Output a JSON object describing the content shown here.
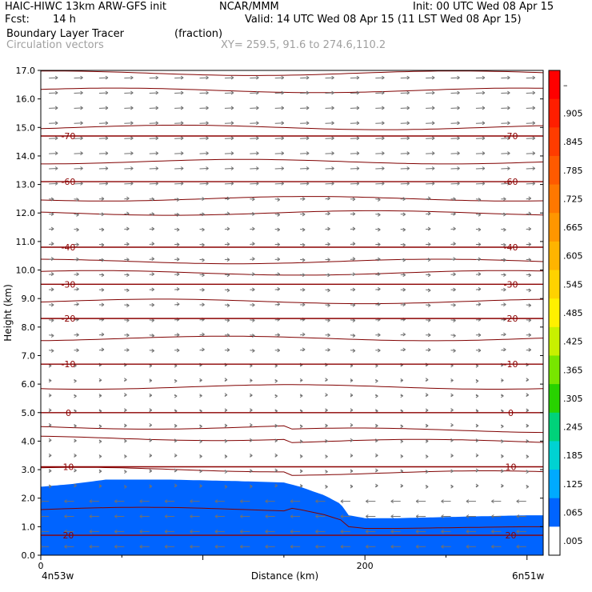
{
  "header": {
    "title_left": "HAIC-HIWC 13km ARW-GFS init",
    "org": "NCAR/MMM",
    "init": "Init: 00 UTC Wed 08 Apr 15",
    "fcst_label": "Fcst:",
    "fcst_value": "14 h",
    "valid": "Valid: 14 UTC Wed 08 Apr 15 (11 LST Wed 08 Apr 15)",
    "field_name": "Boundary Layer Tracer",
    "field_units": "(fraction)",
    "vector_label": "Circulation vectors",
    "xy_label": "XY= 259.5, 91.6 to 274.6,110.2"
  },
  "chart_data": {
    "type": "heatmap",
    "ylabel": "Height (km)",
    "xlabel": "Distance (km)",
    "ylim": [
      0,
      17
    ],
    "xlim": [
      0,
      310
    ],
    "yticks": [
      "0.0",
      "1.0",
      "2.0",
      "3.0",
      "4.0",
      "5.0",
      "6.0",
      "7.0",
      "8.0",
      "9.0",
      "10.0",
      "11.0",
      "12.0",
      "13.0",
      "14.0",
      "15.0",
      "16.0",
      "17.0"
    ],
    "xticks": [
      {
        "value": 0,
        "label": "0"
      },
      {
        "value": 200,
        "label": "200"
      }
    ],
    "endpoint_labels": {
      "left": "4n53w",
      "right": "6n51w"
    },
    "colorbar": {
      "labels": [
        "–",
        ".905",
        ".845",
        ".785",
        ".725",
        ".665",
        ".605",
        ".545",
        ".485",
        ".425",
        ".365",
        ".305",
        ".245",
        ".185",
        ".125",
        ".065",
        ".005"
      ],
      "colors": [
        "#ff0000",
        "#ff1e00",
        "#ff3c00",
        "#ff5a00",
        "#ff7800",
        "#ff9600",
        "#ffb400",
        "#ffd200",
        "#fff000",
        "#c8f000",
        "#78e600",
        "#28d200",
        "#00d27a",
        "#00d2d2",
        "#00aaff",
        "#0064ff",
        "#ffffff"
      ]
    },
    "tracer_top": {
      "distance_km": [
        0,
        20,
        40,
        80,
        120,
        150,
        160,
        175,
        185,
        190,
        200,
        220,
        260,
        300,
        310
      ],
      "height_km": [
        2.4,
        2.5,
        2.65,
        2.65,
        2.6,
        2.55,
        2.4,
        2.1,
        1.8,
        1.4,
        1.3,
        1.3,
        1.35,
        1.4,
        1.4
      ]
    },
    "isotherms": [
      {
        "label": "-70",
        "height_km": 14.7
      },
      {
        "label": "-60",
        "height_km": 13.1
      },
      {
        "label": "-40",
        "height_km": 10.8
      },
      {
        "label": "-30",
        "height_km": 9.5
      },
      {
        "label": "-20",
        "height_km": 8.3
      },
      {
        "label": "-10",
        "height_km": 6.7
      },
      {
        "label": "0",
        "height_km": 5.0
      },
      {
        "label": "10",
        "height_km": 3.1
      },
      {
        "label": "20",
        "height_km": 0.7
      }
    ],
    "theta_lines_km": [
      1.6,
      3.0,
      4.1,
      4.5,
      5.9,
      7.6,
      8.9,
      9.9,
      10.3,
      12.0,
      12.5,
      13.8,
      15.0,
      16.3,
      16.9
    ],
    "vectors_note": "Circulation vectors"
  }
}
